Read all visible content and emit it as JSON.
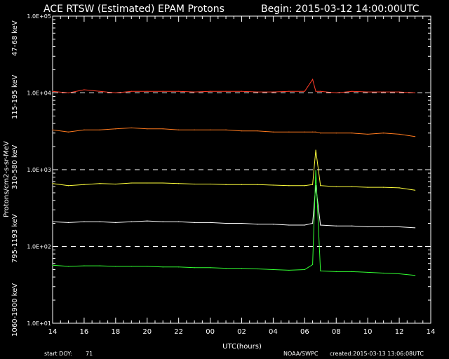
{
  "title": "ACE RTSW (Estimated) EPAM Protons",
  "begin": "Begin: 2015-03-12 14:00:00UTC",
  "footer": {
    "start_label": "start DOY:",
    "start_value": "71",
    "agency": "NOAA/SWPC",
    "created": "created:2015-03-13 13:06:08UTC"
  },
  "colors": {
    "background": "#000000",
    "ch_47_68": "#ff3c28",
    "ch_115_195": "#ff7a1e",
    "ch_310_580": "#ffff3c",
    "ch_795_1193": "#ffffff",
    "ch_1060_1900": "#32ff32"
  },
  "chart_data": {
    "type": "line",
    "title": "ACE RTSW (Estimated) EPAM Protons",
    "xlabel": "UTC(hours)",
    "ylabel": "Protons/cm2-s-sr-MeV",
    "yscale": "log",
    "ylim": [
      10,
      100000
    ],
    "xlim": [
      14,
      38
    ],
    "x_ticks": [
      "14",
      "16",
      "18",
      "20",
      "22",
      "00",
      "02",
      "04",
      "06",
      "08",
      "10",
      "12",
      "14"
    ],
    "y_ticks": [
      "1.0E+01",
      "1.0E+02",
      "1.0E+03",
      "1.0E+04",
      "1.0E+05"
    ],
    "dashed_reference_lines": [
      10000,
      1000,
      100
    ],
    "x": [
      14.0,
      15.0,
      16.0,
      17.0,
      18.0,
      19.0,
      20.0,
      21.0,
      22.0,
      23.0,
      24.0,
      25.0,
      26.0,
      27.0,
      28.0,
      29.0,
      30.0,
      30.5,
      30.7,
      31.0,
      32.0,
      33.0,
      34.0,
      35.0,
      36.0,
      37.0
    ],
    "series": [
      {
        "name": "47-68 keV",
        "color": "#ff3c28",
        "values": [
          10500,
          10000,
          11000,
          10500,
          10000,
          10500,
          10500,
          10500,
          10500,
          10300,
          10500,
          10500,
          10500,
          10300,
          10300,
          10500,
          10500,
          15000,
          10500,
          10500,
          10000,
          10500,
          10300,
          10300,
          10300,
          10000
        ]
      },
      {
        "name": "115-195 keV",
        "color": "#ff7a1e",
        "values": [
          3300,
          3100,
          3300,
          3300,
          3400,
          3500,
          3400,
          3400,
          3300,
          3300,
          3300,
          3300,
          3200,
          3200,
          3100,
          3100,
          3100,
          3100,
          3100,
          3000,
          3000,
          3000,
          2900,
          3000,
          2900,
          2700
        ]
      },
      {
        "name": "310-580 keV",
        "color": "#ffff3c",
        "values": [
          660,
          620,
          640,
          660,
          650,
          670,
          670,
          670,
          660,
          650,
          650,
          640,
          640,
          640,
          630,
          620,
          620,
          640,
          1800,
          620,
          600,
          600,
          590,
          590,
          580,
          540
        ]
      },
      {
        "name": "795-1193 keV",
        "color": "#ffffff",
        "values": [
          210,
          205,
          210,
          210,
          205,
          210,
          215,
          210,
          210,
          205,
          205,
          200,
          200,
          195,
          195,
          190,
          190,
          200,
          620,
          190,
          185,
          185,
          180,
          180,
          180,
          175
        ]
      },
      {
        "name": "1060-1900 keV",
        "color": "#32ff32",
        "values": [
          57,
          55,
          56,
          56,
          55,
          55,
          55,
          54,
          54,
          53,
          53,
          52,
          52,
          51,
          50,
          49,
          50,
          58,
          980,
          48,
          47,
          47,
          46,
          45,
          44,
          42
        ]
      }
    ]
  }
}
